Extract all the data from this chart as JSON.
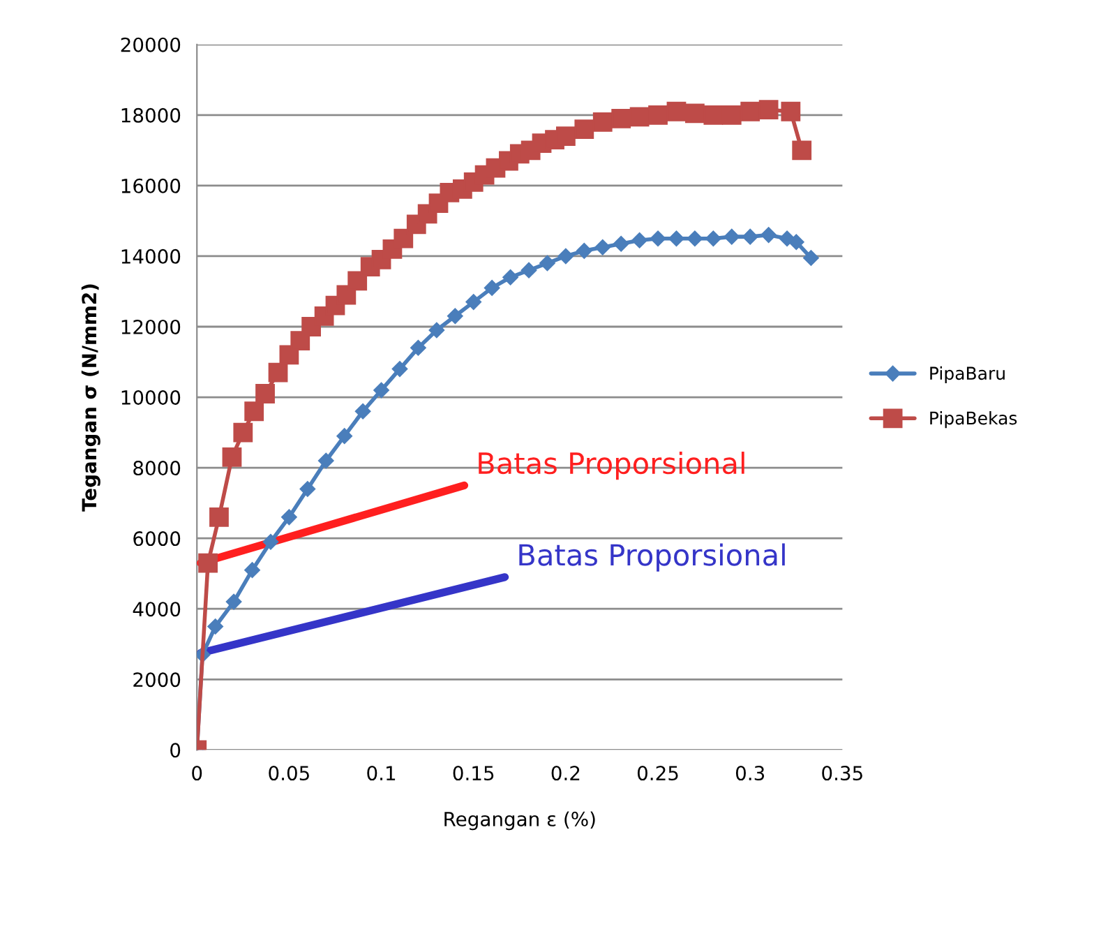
{
  "chart_data": {
    "type": "line",
    "xlabel": "Regangan ε (%)",
    "ylabel": "Tegangan σ (N/mm2)",
    "xlim": [
      0,
      0.35
    ],
    "xticks": [
      0,
      0.05,
      0.1,
      0.15,
      0.2,
      0.25,
      0.3,
      0.35
    ],
    "ylim": [
      0,
      20000
    ],
    "yticks": [
      0,
      2000,
      4000,
      6000,
      8000,
      10000,
      12000,
      14000,
      16000,
      18000,
      20000
    ],
    "grid": "y",
    "legend": "right",
    "series": [
      {
        "name": "PipaBaru",
        "color": "#4a7ebb",
        "marker": "diamond",
        "x": [
          0,
          0.003,
          0.01,
          0.02,
          0.03,
          0.04,
          0.05,
          0.06,
          0.07,
          0.08,
          0.09,
          0.1,
          0.11,
          0.12,
          0.13,
          0.14,
          0.15,
          0.16,
          0.17,
          0.18,
          0.19,
          0.2,
          0.21,
          0.22,
          0.23,
          0.24,
          0.25,
          0.26,
          0.27,
          0.28,
          0.29,
          0.3,
          0.31,
          0.32,
          0.325,
          0.333
        ],
        "values": [
          0,
          2700,
          3500,
          4200,
          5100,
          5900,
          6600,
          7400,
          8200,
          8900,
          9600,
          10200,
          10800,
          11400,
          11900,
          12300,
          12700,
          13100,
          13400,
          13600,
          13800,
          14000,
          14150,
          14250,
          14350,
          14450,
          14500,
          14500,
          14500,
          14500,
          14550,
          14550,
          14600,
          14500,
          14400,
          13950
        ]
      },
      {
        "name": "PipaBekas",
        "color": "#be4b48",
        "marker": "square",
        "x": [
          0,
          0.006,
          0.012,
          0.019,
          0.025,
          0.031,
          0.037,
          0.044,
          0.05,
          0.056,
          0.062,
          0.069,
          0.075,
          0.081,
          0.087,
          0.094,
          0.1,
          0.106,
          0.112,
          0.119,
          0.125,
          0.131,
          0.137,
          0.144,
          0.15,
          0.156,
          0.162,
          0.169,
          0.175,
          0.181,
          0.187,
          0.194,
          0.2,
          0.21,
          0.22,
          0.23,
          0.24,
          0.25,
          0.26,
          0.27,
          0.28,
          0.29,
          0.3,
          0.31,
          0.322,
          0.328
        ],
        "values": [
          0,
          5300,
          6600,
          8300,
          9000,
          9600,
          10100,
          10700,
          11200,
          11600,
          12000,
          12300,
          12600,
          12900,
          13300,
          13700,
          13900,
          14200,
          14500,
          14900,
          15200,
          15500,
          15800,
          15900,
          16100,
          16300,
          16500,
          16700,
          16900,
          17000,
          17200,
          17300,
          17400,
          17600,
          17800,
          17900,
          17950,
          18000,
          18100,
          18050,
          18000,
          18000,
          18100,
          18150,
          18100,
          17000
        ]
      },
      {
        "color": "#ff1f1f",
        "marker": "none",
        "x": [
          0.002,
          0.145
        ],
        "values": [
          5300,
          7500
        ]
      },
      {
        "color": "#3535c8",
        "marker": "none",
        "x": [
          0.002,
          0.167
        ],
        "values": [
          2750,
          4900
        ]
      }
    ],
    "annotations": [
      {
        "text": "Batas Proporsional",
        "x": 0.145,
        "y": 7500
      },
      {
        "text": "Batas Proporsional",
        "x": 0.167,
        "y": 4900
      }
    ]
  }
}
